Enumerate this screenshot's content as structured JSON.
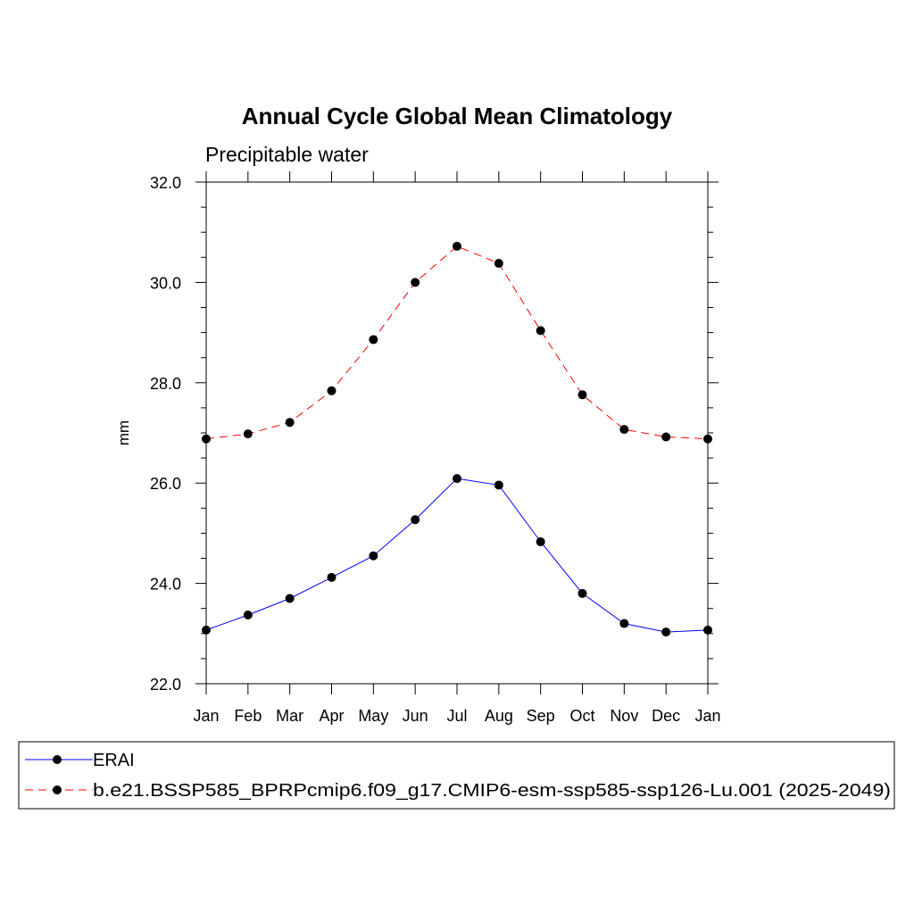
{
  "chart_data": {
    "type": "line",
    "title": "Annual Cycle Global Mean Climatology",
    "subtitle": "Precipitable water",
    "xlabel": "",
    "ylabel": "mm",
    "categories": [
      "Jan",
      "Feb",
      "Mar",
      "Apr",
      "May",
      "Jun",
      "Jul",
      "Aug",
      "Sep",
      "Oct",
      "Nov",
      "Dec",
      "Jan"
    ],
    "ylim": [
      22.0,
      32.0
    ],
    "yticks": [
      "22.0",
      "24.0",
      "26.0",
      "28.0",
      "30.0",
      "32.0"
    ],
    "yminor_step": 0.5,
    "series": [
      {
        "name": "ERAI",
        "color": "#0000ff",
        "line_style": "solid",
        "marker": "filled-circle",
        "values": [
          23.07,
          23.37,
          23.7,
          24.12,
          24.55,
          25.27,
          26.09,
          25.96,
          24.83,
          23.8,
          23.2,
          23.03,
          23.07
        ]
      },
      {
        "name": "b.e21.BSSP585_BPRPcmip6.f09_g17.CMIP6-esm-ssp585-ssp126-Lu.001 (2025-2049)",
        "color": "#ff0000",
        "line_style": "dashed",
        "marker": "filled-circle",
        "values": [
          26.88,
          26.98,
          27.21,
          27.84,
          28.86,
          30.0,
          30.72,
          30.38,
          29.04,
          27.76,
          27.07,
          26.92,
          26.88
        ]
      }
    ],
    "legend_placement": "bottom"
  }
}
